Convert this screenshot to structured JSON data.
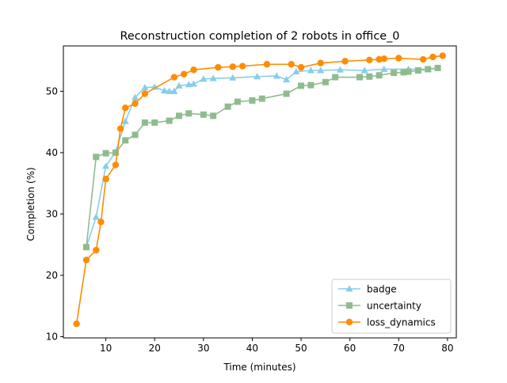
{
  "chart_data": {
    "type": "line",
    "title": "Reconstruction completion of 2 robots in office_0",
    "xlabel": "Time (minutes)",
    "ylabel": "Completion (%)",
    "xlim": [
      1.3,
      81.8
    ],
    "ylim": [
      9.8,
      57.4
    ],
    "xticks": [
      10,
      20,
      30,
      40,
      50,
      60,
      70,
      80
    ],
    "yticks": [
      10,
      20,
      30,
      40,
      50
    ],
    "grid": false,
    "legend_position": "lower-right",
    "series": [
      {
        "name": "badge",
        "color": "#87CEEB",
        "marker": "triangle",
        "x": [
          6,
          8,
          10,
          12,
          14,
          16,
          18,
          20,
          22,
          23,
          24,
          25,
          27,
          28,
          30,
          32,
          36,
          41,
          45,
          47,
          49,
          52,
          54,
          58,
          63,
          67,
          72,
          76,
          78
        ],
        "y": [
          24.6,
          29.5,
          37.8,
          40.1,
          45.1,
          49.0,
          50.6,
          50.7,
          50.1,
          50.0,
          50.0,
          50.9,
          51.1,
          51.2,
          52.0,
          52.1,
          52.2,
          52.4,
          52.5,
          51.9,
          53.2,
          53.4,
          53.4,
          53.5,
          53.4,
          53.6,
          53.6,
          53.6,
          53.8
        ]
      },
      {
        "name": "uncertainty",
        "color": "#8FBC8F",
        "marker": "square",
        "x": [
          6,
          8,
          10,
          12,
          14,
          16,
          18,
          20,
          23,
          25,
          27,
          30,
          32,
          35,
          37,
          40,
          42,
          47,
          50,
          52,
          55,
          57,
          62,
          64,
          66,
          69,
          71,
          72,
          74,
          76,
          78
        ],
        "y": [
          24.6,
          39.3,
          39.9,
          40.0,
          42.0,
          42.9,
          44.9,
          44.9,
          45.2,
          46.0,
          46.4,
          46.2,
          46.0,
          47.5,
          48.3,
          48.5,
          48.8,
          49.6,
          50.9,
          51.0,
          51.5,
          52.3,
          52.3,
          52.4,
          52.6,
          53.0,
          53.1,
          53.2,
          53.4,
          53.6,
          53.8
        ]
      },
      {
        "name": "loss_dynamics",
        "color": "#FF8C00",
        "marker": "circle",
        "x": [
          4,
          6,
          8,
          9,
          10,
          12,
          13,
          14,
          16,
          18,
          24,
          26,
          28,
          33,
          36,
          38,
          43,
          48,
          50,
          54,
          59,
          64,
          66,
          67,
          70,
          75,
          77,
          79
        ],
        "y": [
          12.1,
          22.5,
          24.1,
          28.7,
          35.7,
          38.0,
          43.9,
          47.3,
          48.0,
          49.6,
          52.3,
          52.8,
          53.5,
          53.9,
          54.0,
          54.1,
          54.4,
          54.4,
          53.9,
          54.6,
          54.9,
          55.1,
          55.2,
          55.3,
          55.4,
          55.2,
          55.6,
          55.8
        ]
      }
    ]
  }
}
